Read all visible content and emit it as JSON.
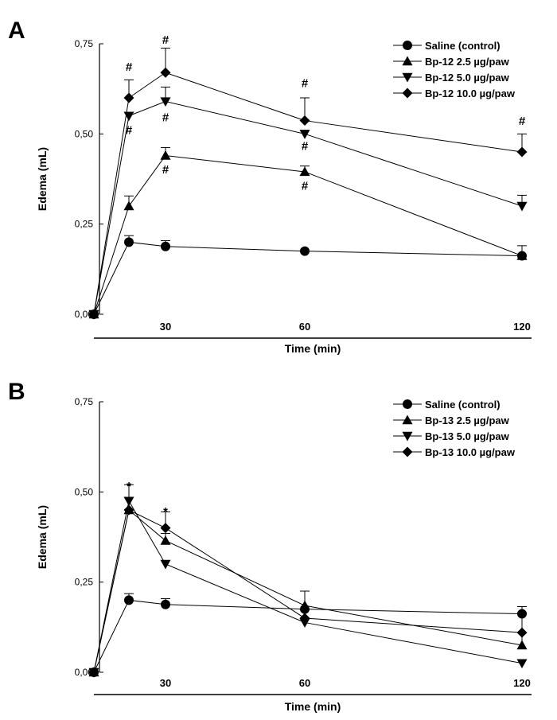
{
  "chart_data": [
    {
      "type": "line",
      "panel_label": "A",
      "xlabel": "Time (min)",
      "ylabel": "Edema (mL)",
      "ylim": [
        0,
        0.75
      ],
      "y_ticks": [
        "0,00",
        "0,25",
        "0,50",
        "0,75"
      ],
      "x_ticks": [
        "30",
        "60",
        "120"
      ],
      "legend_position": "top-right",
      "series": [
        {
          "name": "Saline (control)",
          "marker": "circle",
          "points": [
            {
              "x": "0",
              "y": 0,
              "err": 0
            },
            {
              "x": "15",
              "y": 0.2,
              "err": 0.018
            },
            {
              "x": "30",
              "y": 0.188,
              "err": 0.016
            },
            {
              "x": "60",
              "y": 0.175,
              "err": 0
            },
            {
              "x": "120",
              "y": 0.162,
              "err": 0.028
            }
          ]
        },
        {
          "name": "Bp-12   2.5 µg/paw",
          "marker": "triangle-up",
          "points": [
            {
              "x": "0",
              "y": 0,
              "err": 0
            },
            {
              "x": "15",
              "y": 0.3,
              "err": 0.028
            },
            {
              "x": "30",
              "y": 0.44,
              "err": 0.022
            },
            {
              "x": "60",
              "y": 0.395,
              "err": 0.016
            },
            {
              "x": "120",
              "y": 0.162,
              "err": 0
            }
          ]
        },
        {
          "name": "Bp-12   5.0 µg/paw",
          "marker": "triangle-down",
          "points": [
            {
              "x": "0",
              "y": 0,
              "err": 0
            },
            {
              "x": "15",
              "y": 0.55,
              "err": 0
            },
            {
              "x": "30",
              "y": 0.59,
              "err": 0.04
            },
            {
              "x": "60",
              "y": 0.5,
              "err": 0
            },
            {
              "x": "120",
              "y": 0.3,
              "err": 0.03
            }
          ]
        },
        {
          "name": "Bp-12 10.0 µg/paw",
          "marker": "diamond",
          "points": [
            {
              "x": "0",
              "y": 0,
              "err": 0
            },
            {
              "x": "15",
              "y": 0.6,
              "err": 0.05
            },
            {
              "x": "30",
              "y": 0.67,
              "err": 0.068
            },
            {
              "x": "60",
              "y": 0.537,
              "err": 0.063
            },
            {
              "x": "120",
              "y": 0.45,
              "err": 0.05
            }
          ]
        }
      ],
      "annotations": [
        {
          "text": "#",
          "x": "15",
          "y": 0.675
        },
        {
          "text": "#",
          "x": "15",
          "y": 0.5
        },
        {
          "text": "#",
          "x": "30",
          "y": 0.75
        },
        {
          "text": "#",
          "x": "30",
          "y": 0.535
        },
        {
          "text": "#",
          "x": "30",
          "y": 0.39
        },
        {
          "text": "#",
          "x": "60",
          "y": 0.63
        },
        {
          "text": "#",
          "x": "60",
          "y": 0.455
        },
        {
          "text": "#",
          "x": "60",
          "y": 0.345
        },
        {
          "text": "#",
          "x": "120",
          "y": 0.525
        }
      ]
    },
    {
      "type": "line",
      "panel_label": "B",
      "xlabel": "Time (min)",
      "ylabel": "Edema (mL)",
      "ylim": [
        0,
        0.75
      ],
      "y_ticks": [
        "0,00",
        "0,25",
        "0,50",
        "0,75"
      ],
      "x_ticks": [
        "30",
        "60",
        "120"
      ],
      "legend_position": "top-right",
      "series": [
        {
          "name": "Saline (control)",
          "marker": "circle",
          "points": [
            {
              "x": "0",
              "y": 0,
              "err": 0
            },
            {
              "x": "15",
              "y": 0.2,
              "err": 0.018
            },
            {
              "x": "30",
              "y": 0.188,
              "err": 0.016
            },
            {
              "x": "60",
              "y": 0.175,
              "err": 0
            },
            {
              "x": "120",
              "y": 0.162,
              "err": 0.02
            }
          ]
        },
        {
          "name": "Bp-13   2.5 µg/paw",
          "marker": "triangle-up",
          "points": [
            {
              "x": "0",
              "y": 0,
              "err": 0
            },
            {
              "x": "15",
              "y": 0.45,
              "err": 0
            },
            {
              "x": "30",
              "y": 0.365,
              "err": 0.02
            },
            {
              "x": "60",
              "y": 0.185,
              "err": 0.04
            },
            {
              "x": "120",
              "y": 0.075,
              "err": 0.035
            }
          ]
        },
        {
          "name": "Bp-13   5.0 µg/paw",
          "marker": "triangle-down",
          "points": [
            {
              "x": "0",
              "y": 0,
              "err": 0
            },
            {
              "x": "15",
              "y": 0.475,
              "err": 0.045
            },
            {
              "x": "30",
              "y": 0.3,
              "err": 0
            },
            {
              "x": "60",
              "y": 0.138,
              "err": 0
            },
            {
              "x": "120",
              "y": 0.025,
              "err": 0
            }
          ]
        },
        {
          "name": "Bp-13 10.0 µg/paw",
          "marker": "diamond",
          "points": [
            {
              "x": "0",
              "y": 0,
              "err": 0
            },
            {
              "x": "15",
              "y": 0.45,
              "err": 0
            },
            {
              "x": "30",
              "y": 0.4,
              "err": 0.045
            },
            {
              "x": "60",
              "y": 0.15,
              "err": 0.075
            },
            {
              "x": "120",
              "y": 0.11,
              "err": 0.055
            }
          ]
        }
      ],
      "annotations": [
        {
          "text": "*",
          "x": "15",
          "y": 0.505
        },
        {
          "text": "*",
          "x": "30",
          "y": 0.435
        }
      ]
    }
  ]
}
